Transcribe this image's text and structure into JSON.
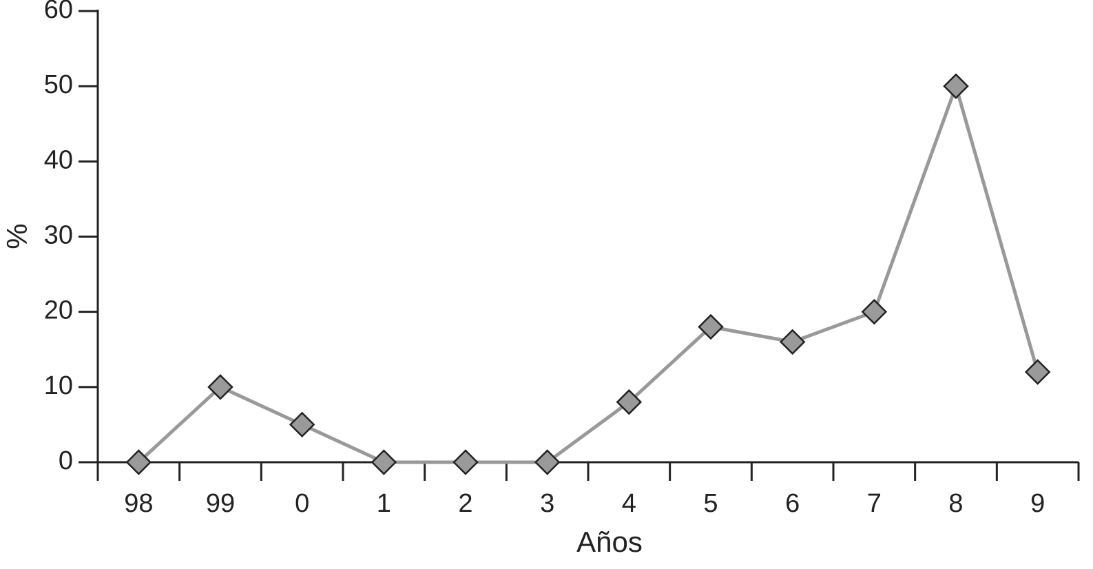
{
  "chart_data": {
    "type": "line",
    "x_label": "Años",
    "y_label": "%",
    "categories": [
      "98",
      "99",
      "0",
      "1",
      "2",
      "3",
      "4",
      "5",
      "6",
      "7",
      "8",
      "9"
    ],
    "values": [
      0,
      10,
      5,
      0,
      0,
      0,
      8,
      18,
      16,
      20,
      50,
      12
    ],
    "color": "#999999",
    "marker_color": "#9a9a9a",
    "marker_edge": "#222222",
    "ylim": [
      0,
      60
    ],
    "yticks": [
      0,
      10,
      20,
      30,
      40,
      50,
      60
    ],
    "grid": false
  }
}
